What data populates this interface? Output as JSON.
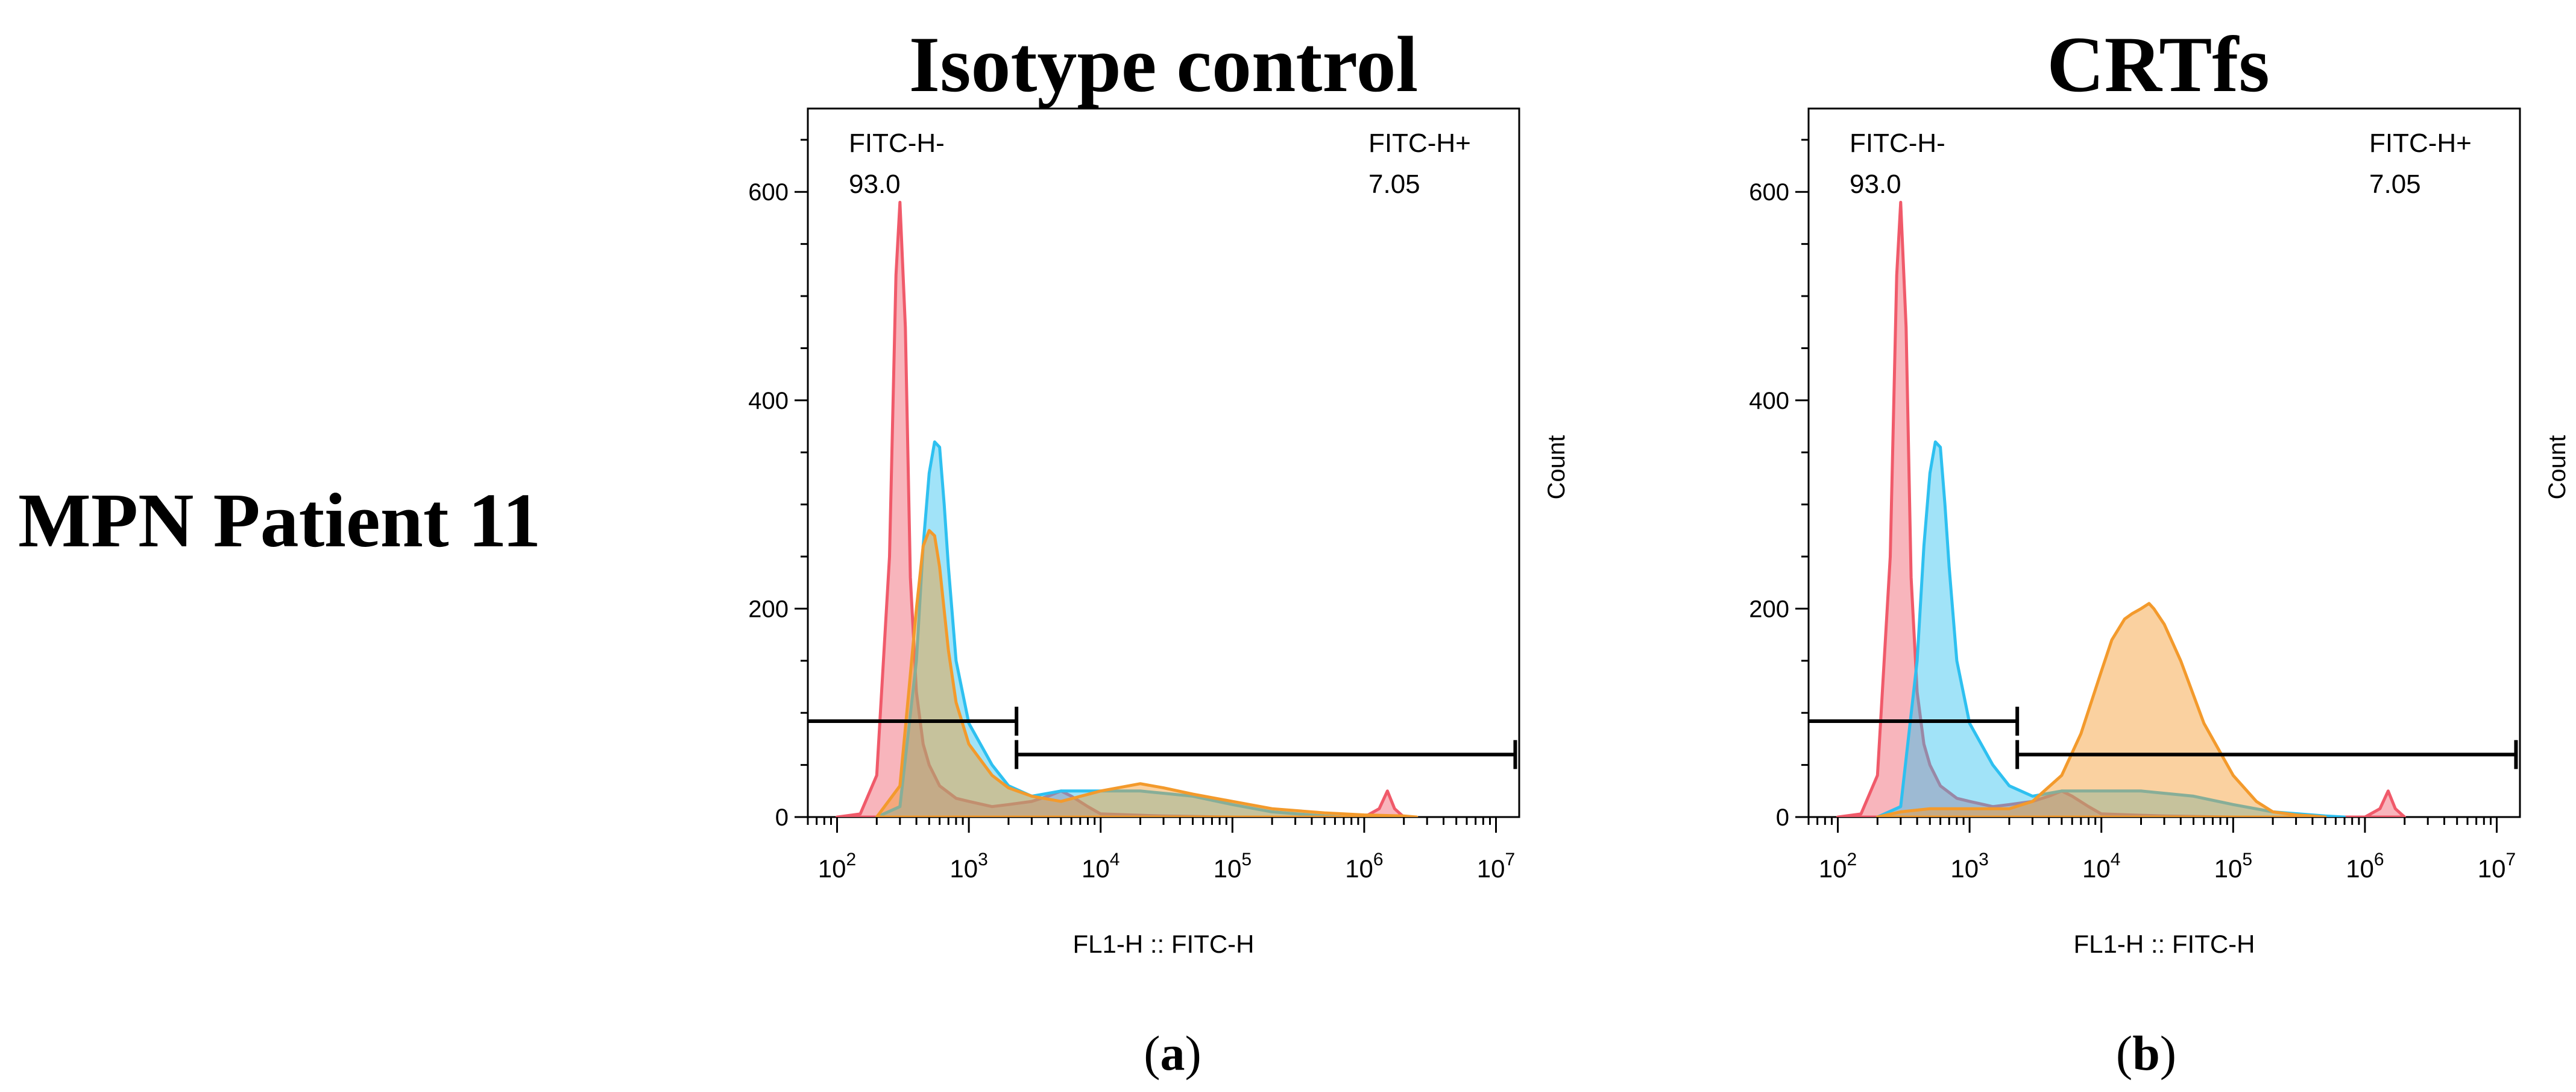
{
  "row_label": "MPN Patient 11",
  "panels": [
    {
      "title": "Isotype control",
      "caption_open": "(",
      "caption_letter": "a",
      "caption_close": ")"
    },
    {
      "title": "CRTfs",
      "caption_open": "(",
      "caption_letter": "b",
      "caption_close": ")"
    }
  ],
  "colors": {
    "red": "#f05a6a",
    "blue": "#2ec0f0",
    "orange": "#f39a2c"
  },
  "chart_data": [
    {
      "type": "area",
      "title": "Isotype control",
      "xlabel": "FL1-H :: FITC-H",
      "ylabel": "Count",
      "xscale": "log",
      "xlim": [
        60,
        15000000
      ],
      "ylim": [
        0,
        680
      ],
      "yticks": [
        0,
        200,
        400,
        600
      ],
      "xticks": [
        100,
        1000,
        10000,
        100000,
        1000000,
        10000000
      ],
      "xtick_bases": [
        "10",
        "10",
        "10",
        "10",
        "10",
        "10"
      ],
      "xtick_exps": [
        "2",
        "3",
        "4",
        "5",
        "6",
        "7"
      ],
      "gates": [
        {
          "name": "FITC-H-",
          "value": "93.0",
          "x_range": [
            60,
            2300
          ],
          "y": 92
        },
        {
          "name": "FITC-H+",
          "value": "7.05",
          "x_range": [
            2300,
            14000000
          ],
          "y": 60
        }
      ],
      "series": [
        {
          "name": "red",
          "color": "#f05a6a",
          "x": [
            100,
            150,
            200,
            250,
            280,
            300,
            330,
            360,
            400,
            450,
            500,
            600,
            800,
            1000,
            1500,
            2000,
            3000,
            4000,
            5000,
            6000,
            8000,
            10000,
            30000,
            100000,
            500000,
            1000000,
            1300000,
            1500000,
            1700000,
            2000000
          ],
          "y": [
            0,
            3,
            40,
            250,
            520,
            590,
            470,
            230,
            120,
            70,
            50,
            30,
            18,
            15,
            10,
            12,
            15,
            20,
            25,
            20,
            10,
            3,
            1,
            0,
            0,
            0,
            8,
            25,
            8,
            0
          ]
        },
        {
          "name": "blue",
          "color": "#2ec0f0",
          "x": [
            200,
            300,
            400,
            450,
            500,
            550,
            600,
            650,
            700,
            800,
            1000,
            1500,
            2000,
            3000,
            5000,
            10000,
            20000,
            50000,
            100000,
            200000,
            500000,
            700000
          ],
          "y": [
            0,
            10,
            150,
            260,
            330,
            360,
            355,
            300,
            240,
            150,
            90,
            50,
            30,
            20,
            25,
            25,
            25,
            20,
            12,
            5,
            1,
            0
          ]
        },
        {
          "name": "orange",
          "color": "#f39a2c",
          "x": [
            200,
            300,
            350,
            400,
            450,
            500,
            550,
            600,
            700,
            800,
            1000,
            1500,
            2000,
            3000,
            5000,
            10000,
            20000,
            30000,
            50000,
            100000,
            200000,
            500000,
            700000,
            1000000,
            2000000,
            2500000
          ],
          "y": [
            0,
            30,
            120,
            200,
            260,
            275,
            270,
            240,
            160,
            110,
            70,
            40,
            28,
            20,
            15,
            25,
            32,
            28,
            22,
            15,
            8,
            4,
            3,
            2,
            1,
            0
          ]
        }
      ]
    },
    {
      "type": "area",
      "title": "CRTfs",
      "xlabel": "FL1-H :: FITC-H",
      "ylabel": "Count",
      "xscale": "log",
      "xlim": [
        60,
        15000000
      ],
      "ylim": [
        0,
        680
      ],
      "yticks": [
        0,
        200,
        400,
        600
      ],
      "xticks": [
        100,
        1000,
        10000,
        100000,
        1000000,
        10000000
      ],
      "xtick_bases": [
        "10",
        "10",
        "10",
        "10",
        "10",
        "10"
      ],
      "xtick_exps": [
        "2",
        "3",
        "4",
        "5",
        "6",
        "7"
      ],
      "gates": [
        {
          "name": "FITC-H-",
          "value": "93.0",
          "x_range": [
            60,
            2300
          ],
          "y": 92
        },
        {
          "name": "FITC-H+",
          "value": "7.05",
          "x_range": [
            2300,
            14000000
          ],
          "y": 60
        }
      ],
      "series": [
        {
          "name": "red",
          "color": "#f05a6a",
          "x": [
            100,
            150,
            200,
            250,
            280,
            300,
            330,
            360,
            400,
            450,
            500,
            600,
            800,
            1000,
            1500,
            2000,
            3000,
            4000,
            5000,
            6000,
            8000,
            10000,
            30000,
            100000,
            500000,
            1000000,
            1300000,
            1500000,
            1700000,
            2000000
          ],
          "y": [
            0,
            3,
            40,
            250,
            520,
            590,
            470,
            230,
            120,
            70,
            50,
            30,
            18,
            15,
            10,
            12,
            15,
            20,
            25,
            20,
            10,
            3,
            1,
            0,
            0,
            0,
            8,
            25,
            8,
            0
          ]
        },
        {
          "name": "blue",
          "color": "#2ec0f0",
          "x": [
            200,
            300,
            400,
            450,
            500,
            550,
            600,
            650,
            700,
            800,
            1000,
            1500,
            2000,
            3000,
            5000,
            10000,
            20000,
            50000,
            100000,
            200000,
            500000,
            700000
          ],
          "y": [
            0,
            10,
            150,
            260,
            330,
            360,
            355,
            300,
            240,
            150,
            90,
            50,
            30,
            20,
            25,
            25,
            25,
            20,
            12,
            5,
            1,
            0
          ]
        },
        {
          "name": "orange",
          "color": "#f39a2c",
          "x": [
            200,
            300,
            500,
            1000,
            2000,
            3000,
            5000,
            7000,
            10000,
            12000,
            15000,
            17000,
            20000,
            23000,
            25000,
            30000,
            40000,
            60000,
            100000,
            150000,
            200000,
            300000,
            400000,
            500000
          ],
          "y": [
            0,
            5,
            8,
            8,
            8,
            15,
            40,
            80,
            140,
            170,
            190,
            195,
            200,
            205,
            200,
            185,
            150,
            90,
            40,
            15,
            5,
            2,
            1,
            0
          ]
        }
      ]
    }
  ]
}
